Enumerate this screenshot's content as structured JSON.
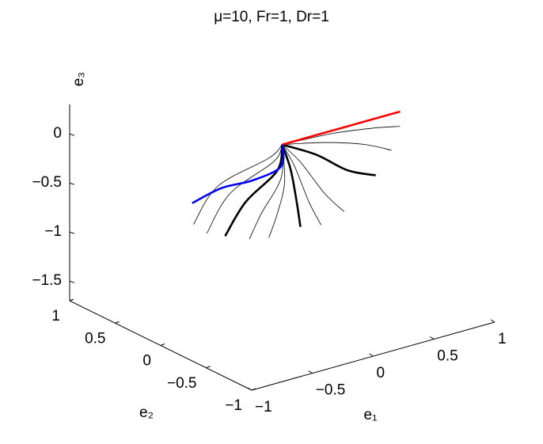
{
  "chart_data": {
    "type": "line3d",
    "title": "μ=10, Fr=1, Dr=1",
    "xlabel": "e₁",
    "ylabel": "e₂",
    "zlabel": "e₃",
    "xlim": [
      -1,
      1
    ],
    "ylim": [
      -1,
      1
    ],
    "zlim": [
      -1.7,
      0.3
    ],
    "xticks": [
      {
        "value": -1,
        "label": "−1"
      },
      {
        "value": -0.5,
        "label": "−0.5"
      },
      0,
      0.5,
      1
    ],
    "yticks": [
      {
        "value": -1,
        "label": "−1"
      },
      {
        "value": -0.5,
        "label": "−0.5"
      },
      0,
      0.5,
      1
    ],
    "zticks": [
      {
        "value": -1.5,
        "label": "−1.5"
      },
      {
        "value": -1,
        "label": "−1"
      },
      {
        "value": -0.5,
        "label": "−0.5"
      },
      0
    ],
    "series": [
      {
        "color": "#000000",
        "width": 0.8,
        "x": [
          0,
          0.41,
          0.74,
          0.97
        ],
        "y": [
          0,
          0,
          0,
          0
        ],
        "z": [
          0,
          -0.03,
          -0.09,
          -0.15
        ]
      },
      {
        "color": "#000000",
        "width": 0.8,
        "x": [
          0,
          0.35,
          0.67,
          0.9
        ],
        "y": [
          0,
          0,
          0,
          0
        ],
        "z": [
          0,
          -0.1,
          -0.23,
          -0.37
        ]
      },
      {
        "color": "#000000",
        "width": 2.6,
        "x": [
          0,
          0.28,
          0.54,
          0.77
        ],
        "y": [
          0,
          0,
          0,
          0
        ],
        "z": [
          0,
          -0.2,
          -0.45,
          -0.58
        ]
      },
      {
        "color": "#000000",
        "width": 0.8,
        "x": [
          0,
          0.15,
          0.35,
          0.51
        ],
        "y": [
          0,
          0,
          0,
          0
        ],
        "z": [
          0,
          -0.23,
          -0.62,
          -0.86
        ]
      },
      {
        "color": "#000000",
        "width": 0.8,
        "x": [
          0,
          0.1,
          0.22,
          0.32
        ],
        "y": [
          0,
          0,
          0,
          0
        ],
        "z": [
          0,
          -0.25,
          -0.66,
          -0.93
        ]
      },
      {
        "color": "#000000",
        "width": 2.6,
        "x": [
          0,
          0.07,
          0.12,
          0.15
        ],
        "y": [
          0,
          0,
          0,
          0
        ],
        "z": [
          0,
          -0.28,
          -0.63,
          -0.89
        ]
      },
      {
        "color": "#000000",
        "width": 0.8,
        "x": [
          0,
          0.02,
          -0.04,
          -0.11
        ],
        "y": [
          0,
          0,
          0,
          0
        ],
        "z": [
          0,
          -0.39,
          -0.69,
          -0.91
        ]
      },
      {
        "color": "#000000",
        "width": 0.8,
        "x": [
          0,
          -0.01,
          -0.17,
          -0.27
        ],
        "y": [
          0,
          0,
          0,
          0
        ],
        "z": [
          0,
          -0.34,
          -0.64,
          -0.87
        ]
      },
      {
        "color": "#000000",
        "width": 2.6,
        "x": [
          0,
          -0.04,
          -0.3,
          -0.47
        ],
        "y": [
          0,
          0,
          0,
          0
        ],
        "z": [
          0,
          -0.25,
          -0.48,
          -0.77
        ]
      },
      {
        "color": "#000000",
        "width": 0.8,
        "x": [
          0,
          -0.07,
          -0.43,
          -0.62
        ],
        "y": [
          0,
          0,
          0,
          0
        ],
        "z": [
          0,
          -0.15,
          -0.35,
          -0.69
        ]
      },
      {
        "color": "#000000",
        "width": 0.8,
        "x": [
          0,
          -0.11,
          -0.53,
          -0.73
        ],
        "y": [
          0,
          0,
          0,
          0
        ],
        "z": [
          0,
          -0.1,
          -0.24,
          -0.56
        ]
      },
      {
        "color": "#ff0000",
        "width": 2.6,
        "x": [
          0,
          0.5,
          0.97
        ],
        "y": [
          0,
          0,
          0
        ],
        "z": [
          0,
          0,
          0
        ]
      },
      {
        "color": "#0000ff",
        "width": 2.6,
        "x": [
          0,
          -0.01,
          -0.24,
          -0.5,
          -0.74
        ],
        "y": [
          0,
          0,
          0,
          0,
          0
        ],
        "z": [
          0,
          -0.22,
          -0.28,
          -0.27,
          -0.34
        ]
      }
    ]
  }
}
